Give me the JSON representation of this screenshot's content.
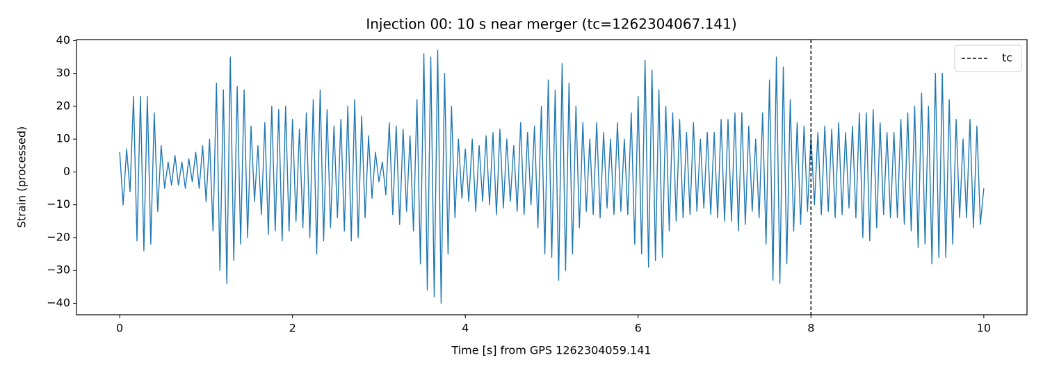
{
  "chart_data": {
    "type": "line",
    "title": "Injection 00: 10 s near merger (tc=1262304067.141)",
    "xlabel": "Time [s] from GPS 1262304059.141",
    "ylabel": "Strain (processed)",
    "color": "#1f77b4",
    "x": [
      0,
      0.04,
      0.08,
      0.12,
      0.16,
      0.2,
      0.24,
      0.28,
      0.32,
      0.36,
      0.4,
      0.44,
      0.48,
      0.52,
      0.56,
      0.6,
      0.64,
      0.68,
      0.72,
      0.76,
      0.8,
      0.84,
      0.88,
      0.92,
      0.96,
      1,
      1.04,
      1.08,
      1.12,
      1.16,
      1.2,
      1.24,
      1.28,
      1.32,
      1.36,
      1.4,
      1.44,
      1.48,
      1.52,
      1.56,
      1.6,
      1.64,
      1.68,
      1.72,
      1.76,
      1.8,
      1.84,
      1.88,
      1.92,
      1.96,
      2,
      2.04,
      2.08,
      2.12,
      2.16,
      2.2,
      2.24,
      2.28,
      2.32,
      2.36,
      2.4,
      2.44,
      2.48,
      2.52,
      2.56,
      2.6,
      2.64,
      2.68,
      2.72,
      2.76,
      2.8,
      2.84,
      2.88,
      2.92,
      2.96,
      3,
      3.04,
      3.08,
      3.12,
      3.16,
      3.2,
      3.24,
      3.28,
      3.32,
      3.36,
      3.4,
      3.44,
      3.48,
      3.52,
      3.56,
      3.6,
      3.64,
      3.68,
      3.72,
      3.76,
      3.8,
      3.84,
      3.88,
      3.92,
      3.96,
      4,
      4.04,
      4.08,
      4.12,
      4.16,
      4.2,
      4.24,
      4.28,
      4.32,
      4.36,
      4.4,
      4.44,
      4.48,
      4.52,
      4.56,
      4.6,
      4.64,
      4.68,
      4.72,
      4.76,
      4.8,
      4.84,
      4.88,
      4.92,
      4.96,
      5,
      5.04,
      5.08,
      5.12,
      5.16,
      5.2,
      5.24,
      5.28,
      5.32,
      5.36,
      5.4,
      5.44,
      5.48,
      5.52,
      5.56,
      5.6,
      5.64,
      5.68,
      5.72,
      5.76,
      5.8,
      5.84,
      5.88,
      5.92,
      5.96,
      6,
      6.04,
      6.08,
      6.12,
      6.16,
      6.2,
      6.24,
      6.28,
      6.32,
      6.36,
      6.4,
      6.44,
      6.48,
      6.52,
      6.56,
      6.6,
      6.64,
      6.68,
      6.72,
      6.76,
      6.8,
      6.84,
      6.88,
      6.92,
      6.96,
      7,
      7.04,
      7.08,
      7.12,
      7.16,
      7.2,
      7.24,
      7.28,
      7.32,
      7.36,
      7.4,
      7.44,
      7.48,
      7.52,
      7.56,
      7.6,
      7.64,
      7.68,
      7.72,
      7.76,
      7.8,
      7.84,
      7.88,
      7.92,
      7.96,
      8,
      8.04,
      8.08,
      8.12,
      8.16,
      8.2,
      8.24,
      8.28,
      8.32,
      8.36,
      8.4,
      8.44,
      8.48,
      8.52,
      8.56,
      8.6,
      8.64,
      8.68,
      8.72,
      8.76,
      8.8,
      8.84,
      8.88,
      8.92,
      8.96,
      9,
      9.04,
      9.08,
      9.12,
      9.16,
      9.2,
      9.24,
      9.28,
      9.32,
      9.36,
      9.4,
      9.44,
      9.48,
      9.52,
      9.56,
      9.6,
      9.64,
      9.68,
      9.72,
      9.76,
      9.8,
      9.84,
      9.88,
      9.92,
      9.96,
      10
    ],
    "values": [
      6,
      -10,
      7,
      -6,
      23,
      -21,
      23,
      -24,
      23,
      -22,
      18,
      -12,
      8,
      -5,
      3,
      -4,
      5,
      -4,
      3,
      -5,
      4,
      -3,
      6,
      -5,
      8,
      -9,
      10,
      -18,
      27,
      -30,
      25,
      -34,
      35,
      -27,
      26,
      -22,
      25,
      -20,
      14,
      -9,
      8,
      -13,
      15,
      -19,
      20,
      -18,
      19,
      -21,
      20,
      -18,
      16,
      -15,
      13,
      -17,
      18,
      -20,
      22,
      -25,
      25,
      -21,
      19,
      -17,
      14,
      -14,
      16,
      -18,
      20,
      -21,
      22,
      -20,
      17,
      -14,
      11,
      -8,
      6,
      -3,
      3,
      -7,
      15,
      -13,
      14,
      -16,
      13,
      -12,
      11,
      -18,
      22,
      -28,
      36,
      -36,
      35,
      -38,
      37,
      -40,
      30,
      -25,
      20,
      -14,
      10,
      -8,
      7,
      -9,
      10,
      -12,
      8,
      -9,
      11,
      -10,
      12,
      -13,
      13,
      -11,
      10,
      -9,
      8,
      -12,
      15,
      -13,
      12,
      -10,
      14,
      -17,
      20,
      -25,
      28,
      -26,
      25,
      -33,
      33,
      -30,
      27,
      -25,
      20,
      -17,
      15,
      -12,
      10,
      -13,
      15,
      -14,
      12,
      -11,
      10,
      -13,
      15,
      -12,
      10,
      -13,
      18,
      -22,
      23,
      -25,
      34,
      -29,
      31,
      -27,
      25,
      -26,
      20,
      -18,
      18,
      -15,
      16,
      -14,
      12,
      -13,
      15,
      -12,
      10,
      -11,
      12,
      -13,
      12,
      -14,
      16,
      -15,
      16,
      -15,
      18,
      -18,
      18,
      -16,
      14,
      -12,
      10,
      -14,
      18,
      -22,
      28,
      -33,
      35,
      -34,
      32,
      -28,
      22,
      -18,
      15,
      -16,
      14,
      -12,
      11,
      -10,
      12,
      -13,
      14,
      -12,
      13,
      -14,
      15,
      -13,
      12,
      -11,
      14,
      -14,
      18,
      -20,
      18,
      -21,
      19,
      -17,
      15,
      -13,
      12,
      -14,
      12,
      -14,
      16,
      -16,
      18,
      -18,
      20,
      -23,
      24,
      -22,
      20,
      -28,
      30,
      -26,
      30,
      -26,
      22,
      -22,
      16,
      -14,
      10,
      -14,
      16,
      -17,
      14,
      -16,
      -5
    ],
    "vline": {
      "x": 8,
      "name": "tc",
      "color": "#000000"
    },
    "legend": "upper right",
    "xlim": [
      -0.5,
      10.5
    ],
    "ylim": [
      -43.5,
      40.3
    ],
    "xticks": [
      0,
      2,
      4,
      6,
      8,
      10
    ],
    "yticks": [
      {
        "value": -40,
        "label": "−40"
      },
      {
        "value": -30,
        "label": "−30"
      },
      {
        "value": -20,
        "label": "−20"
      },
      {
        "value": -10,
        "label": "−10"
      },
      0,
      10,
      20,
      30,
      40
    ]
  }
}
